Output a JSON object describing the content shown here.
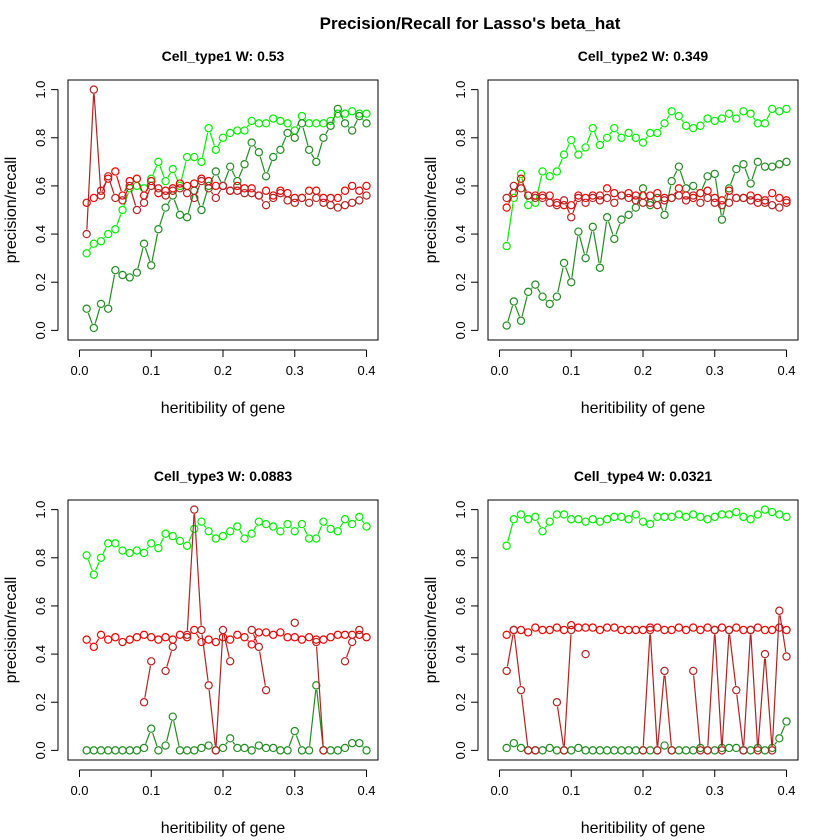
{
  "title": "Precision/Recall for Lasso's beta_hat",
  "colors": {
    "light_green": "#00ee00",
    "dark_green": "#228b22",
    "red": "#ee0000",
    "dark_red": "#b22222"
  },
  "chart_data": [
    {
      "type": "line",
      "title": "Cell_type1  W: 0.53",
      "xlabel": "heritibility of gene",
      "ylabel": "precision/recall",
      "xlim": [
        0,
        0.4
      ],
      "ylim": [
        0,
        1
      ],
      "xticks": [
        "0.0",
        "0.1",
        "0.2",
        "0.3",
        "0.4"
      ],
      "yticks": [
        "0.0",
        "0.2",
        "0.4",
        "0.6",
        "0.8",
        "1.0"
      ],
      "x": [
        0.01,
        0.02,
        0.03,
        0.04,
        0.05,
        0.06,
        0.07,
        0.08,
        0.09,
        0.1,
        0.11,
        0.12,
        0.13,
        0.14,
        0.15,
        0.16,
        0.17,
        0.18,
        0.19,
        0.2,
        0.21,
        0.22,
        0.23,
        0.24,
        0.25,
        0.26,
        0.27,
        0.28,
        0.29,
        0.3,
        0.31,
        0.32,
        0.33,
        0.34,
        0.35,
        0.36,
        0.37,
        0.38,
        0.39,
        0.4
      ],
      "series": [
        {
          "color": "light_green",
          "values": [
            0.32,
            0.36,
            0.37,
            0.4,
            0.42,
            0.5,
            0.59,
            0.6,
            0.59,
            0.63,
            0.7,
            0.62,
            0.67,
            0.6,
            0.72,
            0.72,
            0.7,
            0.84,
            0.75,
            0.8,
            0.82,
            0.83,
            0.83,
            0.87,
            0.86,
            0.86,
            0.88,
            0.87,
            0.86,
            0.83,
            0.89,
            0.86,
            0.86,
            0.86,
            0.87,
            0.9,
            0.9,
            0.91,
            0.9,
            0.9
          ]
        },
        {
          "color": "dark_green",
          "values": [
            0.09,
            0.01,
            0.11,
            0.09,
            0.25,
            0.23,
            0.22,
            0.24,
            0.36,
            0.27,
            0.42,
            0.51,
            0.56,
            0.48,
            0.47,
            0.58,
            0.5,
            0.6,
            0.66,
            0.6,
            0.68,
            0.62,
            0.69,
            0.78,
            0.74,
            0.64,
            0.72,
            0.75,
            0.82,
            0.8,
            0.86,
            0.75,
            0.7,
            0.8,
            0.85,
            0.92,
            0.86,
            0.83,
            0.89,
            0.86
          ]
        },
        {
          "color": "red",
          "values": [
            0.53,
            0.55,
            0.58,
            0.63,
            0.66,
            0.56,
            0.62,
            0.63,
            0.56,
            0.62,
            0.57,
            0.58,
            0.59,
            0.61,
            0.6,
            0.61,
            0.63,
            0.62,
            0.6,
            0.6,
            0.58,
            0.6,
            0.59,
            0.59,
            0.56,
            0.58,
            0.56,
            0.58,
            0.57,
            0.55,
            0.55,
            0.58,
            0.58,
            0.55,
            0.55,
            0.55,
            0.58,
            0.6,
            0.58,
            0.6
          ]
        },
        {
          "color": "dark_red",
          "values": [
            0.4,
            1.0,
            0.56,
            0.64,
            0.55,
            0.54,
            0.6,
            0.5,
            0.53,
            0.6,
            0.59,
            0.56,
            0.58,
            0.59,
            0.57,
            0.55,
            0.62,
            0.59,
            0.55,
            0.6,
            0.58,
            0.58,
            0.57,
            0.57,
            0.56,
            0.52,
            0.55,
            0.57,
            0.54,
            0.53,
            0.55,
            0.53,
            0.55,
            0.53,
            0.52,
            0.51,
            0.52,
            0.53,
            0.54,
            0.56
          ]
        }
      ]
    },
    {
      "type": "line",
      "title": "Cell_type2  W: 0.349",
      "xlabel": "heritibility of gene",
      "ylabel": "precision/recall",
      "xlim": [
        0,
        0.4
      ],
      "ylim": [
        0,
        1
      ],
      "xticks": [
        "0.0",
        "0.1",
        "0.2",
        "0.3",
        "0.4"
      ],
      "yticks": [
        "0.0",
        "0.2",
        "0.4",
        "0.6",
        "0.8",
        "1.0"
      ],
      "x": [
        0.01,
        0.02,
        0.03,
        0.04,
        0.05,
        0.06,
        0.07,
        0.08,
        0.09,
        0.1,
        0.11,
        0.12,
        0.13,
        0.14,
        0.15,
        0.16,
        0.17,
        0.18,
        0.19,
        0.2,
        0.21,
        0.22,
        0.23,
        0.24,
        0.25,
        0.26,
        0.27,
        0.28,
        0.29,
        0.3,
        0.31,
        0.32,
        0.33,
        0.34,
        0.35,
        0.36,
        0.37,
        0.38,
        0.39,
        0.4
      ],
      "series": [
        {
          "color": "light_green",
          "values": [
            0.35,
            0.55,
            0.65,
            0.52,
            0.53,
            0.66,
            0.64,
            0.66,
            0.73,
            0.79,
            0.73,
            0.76,
            0.84,
            0.77,
            0.8,
            0.84,
            0.8,
            0.82,
            0.8,
            0.78,
            0.82,
            0.82,
            0.86,
            0.91,
            0.89,
            0.85,
            0.84,
            0.85,
            0.88,
            0.87,
            0.88,
            0.9,
            0.88,
            0.91,
            0.9,
            0.86,
            0.86,
            0.92,
            0.91,
            0.92
          ]
        },
        {
          "color": "dark_green",
          "values": [
            0.02,
            0.12,
            0.04,
            0.16,
            0.19,
            0.14,
            0.11,
            0.14,
            0.28,
            0.2,
            0.41,
            0.3,
            0.43,
            0.26,
            0.47,
            0.38,
            0.46,
            0.48,
            0.51,
            0.59,
            0.52,
            0.55,
            0.48,
            0.62,
            0.68,
            0.59,
            0.6,
            0.57,
            0.64,
            0.65,
            0.46,
            0.59,
            0.67,
            0.69,
            0.61,
            0.7,
            0.68,
            0.68,
            0.69,
            0.7
          ]
        },
        {
          "color": "red",
          "values": [
            0.51,
            0.57,
            0.63,
            0.56,
            0.56,
            0.56,
            0.56,
            0.53,
            0.52,
            0.52,
            0.56,
            0.55,
            0.56,
            0.56,
            0.59,
            0.57,
            0.56,
            0.57,
            0.56,
            0.56,
            0.56,
            0.57,
            0.55,
            0.55,
            0.59,
            0.56,
            0.55,
            0.57,
            0.58,
            0.55,
            0.54,
            0.58,
            0.55,
            0.55,
            0.56,
            0.55,
            0.54,
            0.57,
            0.55,
            0.54
          ]
        },
        {
          "color": "dark_red",
          "values": [
            0.55,
            0.6,
            0.59,
            0.56,
            0.55,
            0.55,
            0.53,
            0.52,
            0.54,
            0.47,
            0.55,
            0.53,
            0.55,
            0.54,
            0.55,
            0.53,
            0.56,
            0.55,
            0.54,
            0.53,
            0.53,
            0.52,
            0.54,
            0.55,
            0.56,
            0.54,
            0.56,
            0.53,
            0.55,
            0.53,
            0.52,
            0.53,
            0.55,
            0.55,
            0.54,
            0.53,
            0.53,
            0.52,
            0.51,
            0.53
          ]
        }
      ]
    },
    {
      "type": "line",
      "title": "Cell_type3  W: 0.0883",
      "xlabel": "heritibility of gene",
      "ylabel": "precision/recall",
      "xlim": [
        0,
        0.4
      ],
      "ylim": [
        0,
        1
      ],
      "xticks": [
        "0.0",
        "0.1",
        "0.2",
        "0.3",
        "0.4"
      ],
      "yticks": [
        "0.0",
        "0.2",
        "0.4",
        "0.6",
        "0.8",
        "1.0"
      ],
      "x": [
        0.01,
        0.02,
        0.03,
        0.04,
        0.05,
        0.06,
        0.07,
        0.08,
        0.09,
        0.1,
        0.11,
        0.12,
        0.13,
        0.14,
        0.15,
        0.16,
        0.17,
        0.18,
        0.19,
        0.2,
        0.21,
        0.22,
        0.23,
        0.24,
        0.25,
        0.26,
        0.27,
        0.28,
        0.29,
        0.3,
        0.31,
        0.32,
        0.33,
        0.34,
        0.35,
        0.36,
        0.37,
        0.38,
        0.39,
        0.4
      ],
      "series": [
        {
          "color": "light_green",
          "values": [
            0.81,
            0.73,
            0.8,
            0.86,
            0.86,
            0.83,
            0.82,
            0.83,
            0.82,
            0.86,
            0.84,
            0.9,
            0.89,
            0.87,
            0.85,
            0.92,
            0.95,
            0.91,
            0.88,
            0.89,
            0.91,
            0.93,
            0.88,
            0.9,
            0.95,
            0.94,
            0.93,
            0.91,
            0.94,
            0.91,
            0.94,
            0.88,
            0.88,
            0.95,
            0.92,
            0.91,
            0.96,
            0.94,
            0.97,
            0.93
          ]
        },
        {
          "color": "dark_green",
          "values": [
            0.0,
            0.0,
            0.0,
            0.0,
            0.0,
            0.0,
            0.0,
            0.0,
            0.01,
            0.09,
            0.0,
            0.02,
            0.14,
            0.0,
            0.0,
            0.0,
            0.01,
            0.02,
            0.0,
            0.01,
            0.05,
            0.01,
            0.01,
            0.0,
            0.02,
            0.01,
            0.01,
            0.0,
            0.0,
            0.08,
            0.0,
            0.0,
            0.27,
            0.0,
            0.0,
            0.0,
            0.01,
            0.03,
            0.03,
            0.0
          ]
        },
        {
          "color": "red",
          "values": [
            0.46,
            0.43,
            0.48,
            0.46,
            0.47,
            0.45,
            0.46,
            0.47,
            0.48,
            0.47,
            0.46,
            0.47,
            0.46,
            0.48,
            0.47,
            0.5,
            0.45,
            0.46,
            0.45,
            0.47,
            0.46,
            0.48,
            0.47,
            0.44,
            0.49,
            0.49,
            0.48,
            0.49,
            0.47,
            0.47,
            0.46,
            0.47,
            0.46,
            0.46,
            0.47,
            0.48,
            0.48,
            0.48,
            0.48,
            0.47
          ]
        },
        {
          "color": "dark_red",
          "values": [
            null,
            null,
            null,
            null,
            null,
            null,
            null,
            null,
            0.2,
            0.37,
            null,
            0.33,
            0.43,
            null,
            0.48,
            1.0,
            0.5,
            0.27,
            0.0,
            0.5,
            0.37,
            null,
            null,
            0.5,
            0.43,
            0.25,
            null,
            null,
            null,
            0.53,
            null,
            null,
            0.45,
            0.0,
            null,
            null,
            0.37,
            0.45,
            0.5,
            null
          ]
        }
      ]
    },
    {
      "type": "line",
      "title": "Cell_type4  W: 0.0321",
      "xlabel": "heritibility of gene",
      "ylabel": "precision/recall",
      "xlim": [
        0,
        0.4
      ],
      "ylim": [
        0,
        1
      ],
      "xticks": [
        "0.0",
        "0.1",
        "0.2",
        "0.3",
        "0.4"
      ],
      "yticks": [
        "0.0",
        "0.2",
        "0.4",
        "0.6",
        "0.8",
        "1.0"
      ],
      "x": [
        0.01,
        0.02,
        0.03,
        0.04,
        0.05,
        0.06,
        0.07,
        0.08,
        0.09,
        0.1,
        0.11,
        0.12,
        0.13,
        0.14,
        0.15,
        0.16,
        0.17,
        0.18,
        0.19,
        0.2,
        0.21,
        0.22,
        0.23,
        0.24,
        0.25,
        0.26,
        0.27,
        0.28,
        0.29,
        0.3,
        0.31,
        0.32,
        0.33,
        0.34,
        0.35,
        0.36,
        0.37,
        0.38,
        0.39,
        0.4
      ],
      "series": [
        {
          "color": "light_green",
          "values": [
            0.85,
            0.96,
            0.98,
            0.96,
            0.97,
            0.91,
            0.95,
            0.98,
            0.98,
            0.96,
            0.96,
            0.95,
            0.96,
            0.95,
            0.96,
            0.97,
            0.97,
            0.96,
            0.98,
            0.95,
            0.94,
            0.97,
            0.97,
            0.97,
            0.98,
            0.97,
            0.98,
            0.97,
            0.96,
            0.97,
            0.98,
            0.98,
            0.99,
            0.97,
            0.96,
            0.98,
            1.0,
            0.99,
            0.98,
            0.97
          ]
        },
        {
          "color": "dark_green",
          "values": [
            0.01,
            0.03,
            0.01,
            0.0,
            0.0,
            0.0,
            0.01,
            0.0,
            0.0,
            0.0,
            0.01,
            0.0,
            0.0,
            0.0,
            0.0,
            0.0,
            0.0,
            0.0,
            0.0,
            0.0,
            0.0,
            0.0,
            0.02,
            0.0,
            0.0,
            0.0,
            0.0,
            0.01,
            0.0,
            0.0,
            0.01,
            0.01,
            0.01,
            0.0,
            0.0,
            0.01,
            0.0,
            0.01,
            0.05,
            0.12
          ]
        },
        {
          "color": "red",
          "values": [
            0.48,
            0.5,
            0.5,
            0.49,
            0.51,
            0.5,
            0.5,
            0.51,
            0.5,
            0.52,
            0.51,
            0.51,
            0.51,
            0.5,
            0.51,
            0.51,
            0.5,
            0.5,
            0.5,
            0.5,
            0.51,
            0.51,
            0.5,
            0.5,
            0.51,
            0.5,
            0.51,
            0.5,
            0.51,
            0.5,
            0.51,
            0.5,
            0.51,
            0.5,
            0.5,
            0.51,
            0.5,
            0.5,
            0.51,
            0.5
          ]
        },
        {
          "color": "dark_red",
          "values": [
            0.33,
            0.5,
            0.25,
            0.0,
            0.0,
            null,
            null,
            0.2,
            0.0,
            0.5,
            null,
            0.4,
            null,
            null,
            null,
            null,
            null,
            null,
            null,
            0.0,
            0.5,
            0.0,
            0.33,
            0.0,
            null,
            null,
            0.33,
            0.0,
            0.0,
            0.5,
            0.0,
            0.5,
            0.25,
            0.0,
            0.5,
            0.0,
            0.4,
            0.0,
            0.58,
            0.39
          ]
        }
      ]
    }
  ]
}
